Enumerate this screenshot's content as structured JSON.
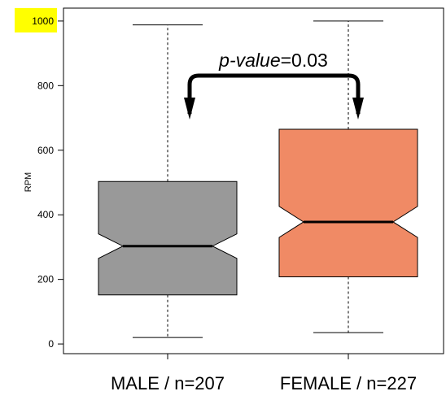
{
  "chart_data": {
    "type": "boxplot",
    "ylabel": "RPM",
    "ylim": [
      -30,
      1040
    ],
    "yticks": [
      0,
      200,
      400,
      600,
      800,
      1000
    ],
    "highlighted_tick": 1000,
    "highlight_color": "#ffff00",
    "categories": [
      "MALE / n=207",
      "FEMALE / n=227"
    ],
    "boxes": [
      {
        "category": "MALE / n=207",
        "min": 20,
        "q1": 152,
        "median": 303,
        "q3": 503,
        "max": 988,
        "notch_low": 265,
        "notch_high": 341,
        "color": "#999999"
      },
      {
        "category": "FEMALE / n=227",
        "min": 35,
        "q1": 208,
        "median": 378,
        "q3": 665,
        "max": 1000,
        "notch_low": 330,
        "notch_high": 426,
        "color": "#f08a65"
      }
    ],
    "annotation": {
      "italic_part": "p-value",
      "rest": "=0.03"
    }
  }
}
